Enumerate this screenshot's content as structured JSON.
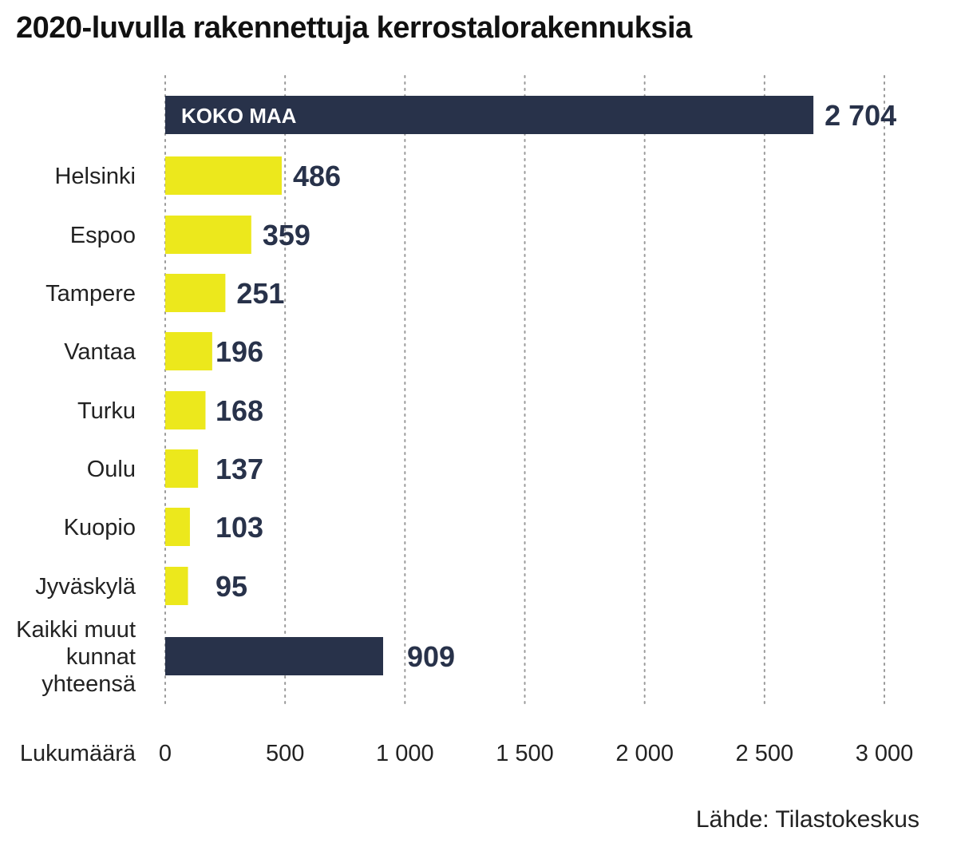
{
  "title": "2020-luvulla rakennettuja kerrostalorakennuksia",
  "source": "Lähde: Tilastokeskus",
  "colors": {
    "dark": "#28324a",
    "yellow": "#ece81c",
    "grid": "#9a9a9a",
    "label_dark": "#28324a",
    "inbar_text": "#ffffff"
  },
  "chart_data": {
    "type": "bar",
    "orientation": "horizontal",
    "categories": [
      "KOKO MAA",
      "Helsinki",
      "Espoo",
      "Tampere",
      "Vantaa",
      "Turku",
      "Oulu",
      "Kuopio",
      "Jyväskylä",
      "Kaikki muut kunnat yhteensä"
    ],
    "values": [
      2704,
      486,
      359,
      251,
      196,
      168,
      137,
      103,
      95,
      909
    ],
    "value_labels": [
      "2 704",
      "486",
      "359",
      "251",
      "196",
      "168",
      "137",
      "103",
      "95",
      "909"
    ],
    "category_label_lines": [
      [],
      [
        "Helsinki"
      ],
      [
        "Espoo"
      ],
      [
        "Tampere"
      ],
      [
        "Vantaa"
      ],
      [
        "Turku"
      ],
      [
        "Oulu"
      ],
      [
        "Kuopio"
      ],
      [
        "Jyväskylä"
      ],
      [
        "Kaikki muut",
        "kunnat",
        "yhteensä"
      ]
    ],
    "bar_colors": [
      "dark",
      "yellow",
      "yellow",
      "yellow",
      "yellow",
      "yellow",
      "yellow",
      "yellow",
      "yellow",
      "dark"
    ],
    "inbar_label": "KOKO MAA",
    "xlabel": "Lukumäärä",
    "xlim": [
      0,
      3000
    ],
    "ticks": [
      0,
      500,
      1000,
      1500,
      2000,
      2500,
      3000
    ],
    "tick_labels": [
      "0",
      "500",
      "1 000",
      "1 500",
      "2 000",
      "2 500",
      "3 000"
    ],
    "grid": "vertical dotted"
  }
}
